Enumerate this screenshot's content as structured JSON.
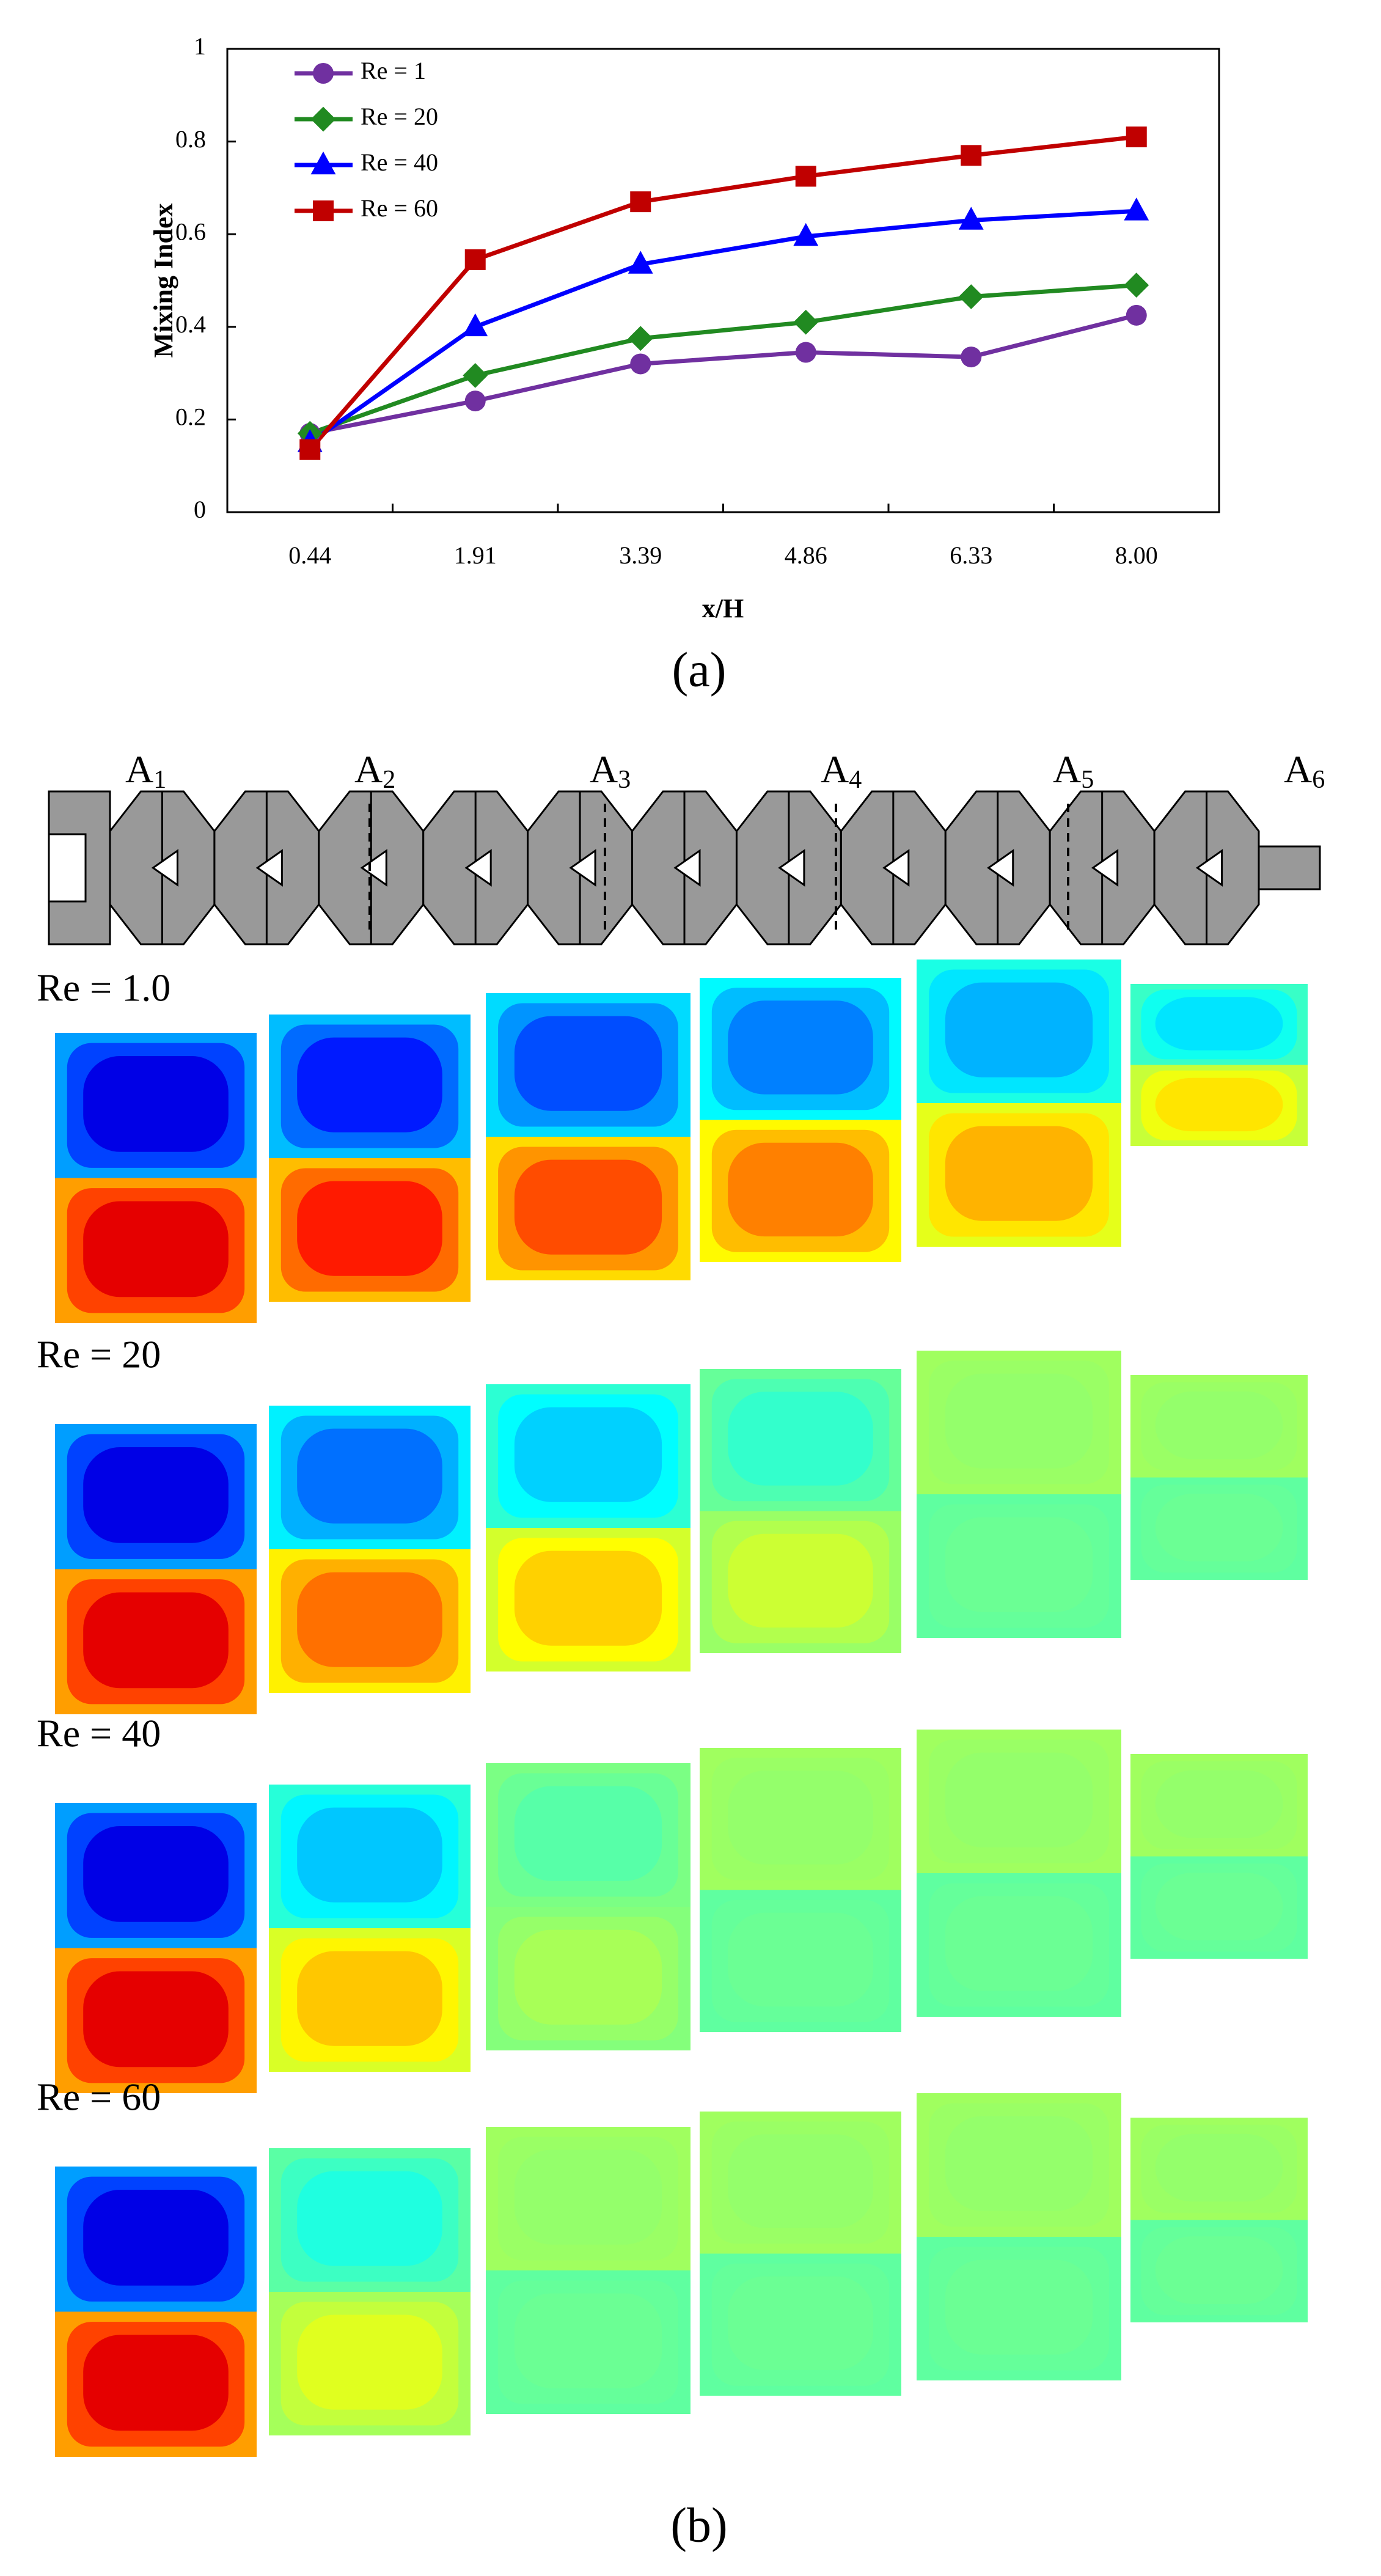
{
  "chart_data": {
    "type": "line",
    "x_label": "x/H",
    "y_label": "Mixing Index",
    "categories": [
      "0.44",
      "1.91",
      "3.39",
      "4.86",
      "6.33",
      "8.00"
    ],
    "series": [
      {
        "name": "Re = 1",
        "color": "#7030a0",
        "marker": "circle",
        "values": [
          0.17,
          0.24,
          0.32,
          0.345,
          0.335,
          0.425
        ]
      },
      {
        "name": "Re = 20",
        "color": "#218a21",
        "marker": "diamond",
        "values": [
          0.17,
          0.295,
          0.375,
          0.41,
          0.465,
          0.49
        ]
      },
      {
        "name": "Re = 40",
        "color": "#0000ff",
        "marker": "triangle",
        "values": [
          0.15,
          0.4,
          0.535,
          0.595,
          0.63,
          0.65
        ]
      },
      {
        "name": "Re = 60",
        "color": "#c00000",
        "marker": "square",
        "values": [
          0.135,
          0.545,
          0.67,
          0.725,
          0.77,
          0.81
        ]
      }
    ],
    "ylim": [
      0,
      1
    ],
    "yticks": [
      0,
      0.2,
      0.4,
      0.6,
      0.8,
      1
    ],
    "legend": "upper left"
  },
  "label_a": "(a)",
  "panel_b": {
    "sections": [
      {
        "letter": "A",
        "sub": "1"
      },
      {
        "letter": "A",
        "sub": "2"
      },
      {
        "letter": "A",
        "sub": "3"
      },
      {
        "letter": "A",
        "sub": "4"
      },
      {
        "letter": "A",
        "sub": "5"
      },
      {
        "letter": "A",
        "sub": "6"
      }
    ],
    "rows": [
      "Re = 1.0",
      "Re = 20",
      "Re = 40",
      "Re = 60"
    ],
    "label": "(b)"
  }
}
